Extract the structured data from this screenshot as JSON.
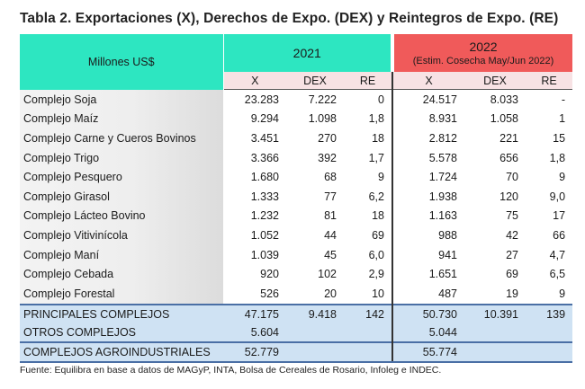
{
  "title": "Tabla 2. Exportaciones (X), Derechos de Expo. (DEX) y Reintegros de Expo. (RE)",
  "header": {
    "unit_label": "Millones US$",
    "year_2021": "2021",
    "year_2022": "2022",
    "note_2022": "(Estim. Cosecha May/Jun 2022)",
    "col_x": "X",
    "col_dex": "DEX",
    "col_re": "RE"
  },
  "rows": [
    {
      "name": "Complejo Soja",
      "x21": "23.283",
      "dex21": "7.222",
      "re21": "0",
      "x22": "24.517",
      "dex22": "8.033",
      "re22": "-"
    },
    {
      "name": "Complejo Maíz",
      "x21": "9.294",
      "dex21": "1.098",
      "re21": "1,8",
      "x22": "8.931",
      "dex22": "1.058",
      "re22": "1"
    },
    {
      "name": "Complejo Carne y Cueros Bovinos",
      "x21": "3.451",
      "dex21": "270",
      "re21": "18",
      "x22": "2.812",
      "dex22": "221",
      "re22": "15"
    },
    {
      "name": "Complejo Trigo",
      "x21": "3.366",
      "dex21": "392",
      "re21": "1,7",
      "x22": "5.578",
      "dex22": "656",
      "re22": "1,8"
    },
    {
      "name": "Complejo Pesquero",
      "x21": "1.680",
      "dex21": "68",
      "re21": "9",
      "x22": "1.724",
      "dex22": "70",
      "re22": "9"
    },
    {
      "name": "Complejo Girasol",
      "x21": "1.333",
      "dex21": "77",
      "re21": "6,2",
      "x22": "1.938",
      "dex22": "120",
      "re22": "9,0"
    },
    {
      "name": "Complejo Lácteo Bovino",
      "x21": "1.232",
      "dex21": "81",
      "re21": "18",
      "x22": "1.163",
      "dex22": "75",
      "re22": "17"
    },
    {
      "name": "Complejo Vitivinícola",
      "x21": "1.052",
      "dex21": "44",
      "re21": "69",
      "x22": "988",
      "dex22": "42",
      "re22": "66"
    },
    {
      "name": "Complejo Maní",
      "x21": "1.039",
      "dex21": "45",
      "re21": "6,0",
      "x22": "941",
      "dex22": "27",
      "re22": "4,7"
    },
    {
      "name": "Complejo Cebada",
      "x21": "920",
      "dex21": "102",
      "re21": "2,9",
      "x22": "1.651",
      "dex22": "69",
      "re22": "6,5"
    },
    {
      "name": "Complejo Forestal",
      "x21": "526",
      "dex21": "20",
      "re21": "10",
      "x22": "487",
      "dex22": "19",
      "re22": "9"
    }
  ],
  "summary": [
    {
      "name": "PRINCIPALES COMPLEJOS",
      "x21": "47.175",
      "dex21": "9.418",
      "re21": "142",
      "x22": "50.730",
      "dex22": "10.391",
      "re22": "139"
    },
    {
      "name": "OTROS COMPLEJOS",
      "x21": "5.604",
      "dex21": "",
      "re21": "",
      "x22": "5.044",
      "dex22": "",
      "re22": ""
    },
    {
      "name": "COMPLEJOS AGROINDUSTRIALES",
      "x21": "52.779",
      "dex21": "",
      "re21": "",
      "x22": "55.774",
      "dex22": "",
      "re22": ""
    }
  ],
  "source": "Fuente: Equilibra en base a datos de MAGyP, INTA, Bolsa de Cereales de Rosario, Infoleg e INDEC.",
  "colors": {
    "header_teal": "#2de6c1",
    "header_red": "#f05a5a",
    "subheader_pink": "#f7e2e4",
    "summary_blue": "#cfe2f3"
  }
}
